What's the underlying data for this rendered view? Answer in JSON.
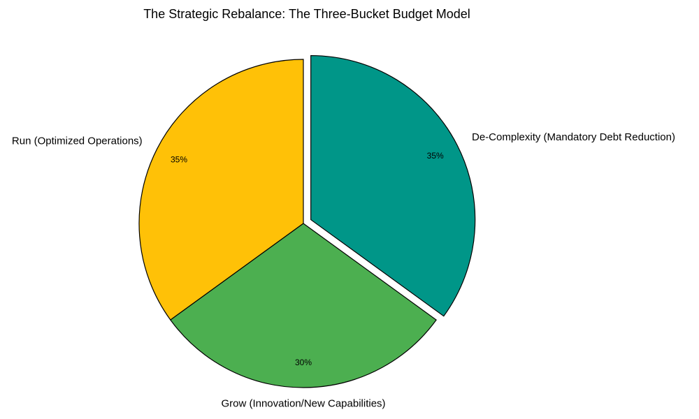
{
  "chart_data": {
    "type": "pie",
    "title": "The Strategic Rebalance: The Three-Bucket Budget Model",
    "slices": [
      {
        "label": "Run (Optimized Operations)",
        "value": 35,
        "pct_label": "35%",
        "color": "#FFC107",
        "exploded": false
      },
      {
        "label": "Grow (Innovation/New Capabilities)",
        "value": 30,
        "pct_label": "30%",
        "color": "#4CAF50",
        "exploded": false
      },
      {
        "label": "De-Complexity (Mandatory Debt Reduction)",
        "value": 35,
        "pct_label": "35%",
        "color": "#009688",
        "exploded": true
      }
    ],
    "start_angle_deg": 90,
    "direction": "counterclockwise",
    "legend": "none"
  }
}
